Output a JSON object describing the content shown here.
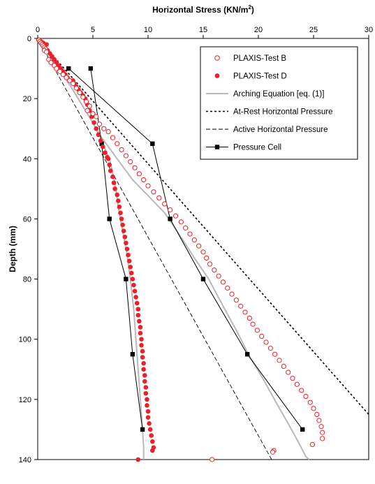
{
  "chart_data": {
    "type": "scatter",
    "title": "",
    "xlabel": "Horizontal Stress (KN/m",
    "xlabel_sup": "2",
    "xlabel_end": ")",
    "ylabel": "Depth (mm)",
    "xlim": [
      0,
      30
    ],
    "ylim": [
      0,
      140
    ],
    "y_inverted": true,
    "x_axis_position": "top",
    "x_ticks": [
      0,
      5,
      10,
      15,
      20,
      25,
      30
    ],
    "y_ticks": [
      0,
      20,
      40,
      60,
      80,
      100,
      120,
      140
    ],
    "grid": false,
    "legend_position": "top-right",
    "series": [
      {
        "name": "PLAXIS-Test B",
        "style": "open-circle",
        "color": "#e8212a",
        "points": [
          [
            0.1,
            0.5
          ],
          [
            0.2,
            1
          ],
          [
            0.3,
            1.5
          ],
          [
            0.4,
            2
          ],
          [
            0.5,
            2.5
          ],
          [
            0.6,
            3
          ],
          [
            0.7,
            3.5
          ],
          [
            0.6,
            4
          ],
          [
            0.8,
            4.5
          ],
          [
            1.0,
            7
          ],
          [
            1.2,
            8
          ],
          [
            1.5,
            9
          ],
          [
            1.7,
            10
          ],
          [
            2.0,
            11
          ],
          [
            2.3,
            12
          ],
          [
            2.6,
            13
          ],
          [
            2.9,
            14
          ],
          [
            3.2,
            15
          ],
          [
            3.5,
            16.5
          ],
          [
            3.8,
            18
          ],
          [
            4.1,
            19.5
          ],
          [
            4.4,
            21
          ],
          [
            4.7,
            22.5
          ],
          [
            4.5,
            24
          ],
          [
            5.0,
            25
          ],
          [
            5.3,
            26
          ],
          [
            5.6,
            28.5
          ],
          [
            6.0,
            30
          ],
          [
            6.4,
            31
          ],
          [
            6.8,
            33
          ],
          [
            7.2,
            35
          ],
          [
            7.6,
            37
          ],
          [
            8.0,
            39
          ],
          [
            8.4,
            41
          ],
          [
            8.8,
            43
          ],
          [
            9.2,
            45
          ],
          [
            9.6,
            47
          ],
          [
            10.0,
            49
          ],
          [
            10.5,
            51
          ],
          [
            11.0,
            53
          ],
          [
            11.5,
            55
          ],
          [
            12.0,
            57
          ],
          [
            12.5,
            59
          ],
          [
            13.0,
            61
          ],
          [
            13.4,
            63
          ],
          [
            13.8,
            65
          ],
          [
            14.2,
            67
          ],
          [
            14.6,
            69
          ],
          [
            15.0,
            71
          ],
          [
            15.3,
            73
          ],
          [
            15.6,
            75
          ],
          [
            16.0,
            77
          ],
          [
            16.4,
            79
          ],
          [
            16.8,
            81
          ],
          [
            17.2,
            83
          ],
          [
            17.6,
            85
          ],
          [
            18.0,
            87
          ],
          [
            18.4,
            89
          ],
          [
            18.8,
            91
          ],
          [
            19.2,
            93
          ],
          [
            19.5,
            95
          ],
          [
            19.9,
            97
          ],
          [
            20.3,
            99
          ],
          [
            20.7,
            101
          ],
          [
            21.1,
            103
          ],
          [
            21.5,
            105
          ],
          [
            21.9,
            107
          ],
          [
            22.3,
            109
          ],
          [
            22.7,
            111
          ],
          [
            23.1,
            113
          ],
          [
            23.5,
            115
          ],
          [
            23.9,
            117
          ],
          [
            24.3,
            119
          ],
          [
            24.7,
            121
          ],
          [
            25.0,
            123
          ],
          [
            25.3,
            125
          ],
          [
            25.5,
            127
          ],
          [
            25.7,
            129
          ],
          [
            25.8,
            131
          ],
          [
            25.8,
            133
          ],
          [
            24.9,
            135
          ],
          [
            21.4,
            137
          ],
          [
            21.3,
            137.5
          ],
          [
            15.8,
            140
          ]
        ]
      },
      {
        "name": "PLAXIS-Test D",
        "style": "filled-circle",
        "color": "#e8212a",
        "points": [
          [
            0.1,
            0.5
          ],
          [
            0.3,
            1
          ],
          [
            0.5,
            1.5
          ],
          [
            0.8,
            2
          ],
          [
            0.6,
            3
          ],
          [
            0.9,
            4
          ],
          [
            1.1,
            5
          ],
          [
            1.3,
            6
          ],
          [
            1.5,
            7
          ],
          [
            1.7,
            8
          ],
          [
            1.9,
            9
          ],
          [
            2.1,
            10
          ],
          [
            2.3,
            11
          ],
          [
            2.5,
            12
          ],
          [
            2.7,
            13
          ],
          [
            3.2,
            14
          ],
          [
            3.3,
            15
          ],
          [
            3.5,
            16
          ],
          [
            3.7,
            17
          ],
          [
            3.9,
            18
          ],
          [
            4.1,
            19
          ],
          [
            4.3,
            20
          ],
          [
            4.5,
            22
          ],
          [
            4.7,
            24
          ],
          [
            4.9,
            26
          ],
          [
            5.1,
            28
          ],
          [
            5.3,
            30
          ],
          [
            5.5,
            32
          ],
          [
            5.7,
            34
          ],
          [
            5.9,
            36
          ],
          [
            6.1,
            38
          ],
          [
            6.3,
            39.5
          ],
          [
            6.4,
            40
          ],
          [
            6.5,
            42
          ],
          [
            6.6,
            44
          ],
          [
            6.8,
            46
          ],
          [
            6.9,
            48
          ],
          [
            7.0,
            50
          ],
          [
            7.2,
            52
          ],
          [
            7.3,
            54
          ],
          [
            7.4,
            56
          ],
          [
            7.5,
            58
          ],
          [
            7.6,
            60
          ],
          [
            7.7,
            62
          ],
          [
            7.8,
            64
          ],
          [
            7.9,
            66
          ],
          [
            8.0,
            68
          ],
          [
            8.1,
            70
          ],
          [
            8.2,
            72
          ],
          [
            8.3,
            74
          ],
          [
            8.4,
            76
          ],
          [
            8.5,
            78
          ],
          [
            8.6,
            80
          ],
          [
            8.7,
            82
          ],
          [
            8.8,
            84
          ],
          [
            8.9,
            86
          ],
          [
            9.0,
            88
          ],
          [
            9.1,
            90
          ],
          [
            9.1,
            92
          ],
          [
            9.2,
            94
          ],
          [
            9.3,
            96
          ],
          [
            9.3,
            98
          ],
          [
            9.4,
            100
          ],
          [
            9.4,
            102
          ],
          [
            9.5,
            104
          ],
          [
            9.5,
            106
          ],
          [
            9.6,
            108
          ],
          [
            9.6,
            110
          ],
          [
            9.7,
            112
          ],
          [
            9.7,
            114
          ],
          [
            9.8,
            116
          ],
          [
            9.8,
            118
          ],
          [
            9.9,
            120
          ],
          [
            9.9,
            122
          ],
          [
            10.0,
            124
          ],
          [
            10.0,
            126
          ],
          [
            10.1,
            128
          ],
          [
            10.2,
            130
          ],
          [
            10.3,
            132
          ],
          [
            10.4,
            134
          ],
          [
            10.5,
            136
          ],
          [
            10.4,
            137
          ],
          [
            9.1,
            140
          ]
        ]
      },
      {
        "name": "Arching Equation [eq. (1)]",
        "style": "solid-line",
        "color": "#b8b8b8",
        "points": [
          [
            0,
            0
          ],
          [
            1.5,
            8
          ],
          [
            3,
            16
          ],
          [
            4.5,
            25
          ],
          [
            5.8,
            33
          ],
          [
            7.2,
            40
          ],
          [
            8.6,
            47
          ],
          [
            10.2,
            53
          ],
          [
            11.5,
            58
          ],
          [
            12.8,
            65
          ],
          [
            14.2,
            73
          ],
          [
            15.5,
            80
          ],
          [
            16.8,
            89
          ],
          [
            18.0,
            97
          ],
          [
            19.1,
            105
          ],
          [
            20.4,
            113
          ],
          [
            21.6,
            121
          ],
          [
            22.7,
            128
          ],
          [
            23.6,
            134
          ],
          [
            24.3,
            139
          ],
          [
            24.6,
            140
          ]
        ],
        "points_lower": [
          [
            0,
            0
          ],
          [
            1,
            5
          ],
          [
            2,
            10
          ],
          [
            3,
            16
          ],
          [
            4,
            22
          ],
          [
            5,
            28
          ],
          [
            5.8,
            34
          ],
          [
            6.5,
            40
          ],
          [
            7.0,
            48
          ],
          [
            7.3,
            56
          ],
          [
            7.7,
            64
          ],
          [
            8.1,
            72
          ],
          [
            8.4,
            80
          ],
          [
            8.7,
            90
          ],
          [
            8.9,
            100
          ],
          [
            9.1,
            110
          ],
          [
            9.3,
            120
          ],
          [
            9.5,
            130
          ],
          [
            9.6,
            136
          ],
          [
            9.6,
            140
          ]
        ]
      },
      {
        "name": "At-Rest Horizontal Pressure",
        "style": "dotted-line",
        "color": "#000000",
        "points": [
          [
            0,
            0
          ],
          [
            30,
            125
          ]
        ]
      },
      {
        "name": "Active Horizontal Pressure",
        "style": "dashed-line",
        "color": "#000000",
        "points": [
          [
            0,
            0
          ],
          [
            21.2,
            140
          ]
        ]
      },
      {
        "name": "Pressure Cell",
        "style": "line-square",
        "color": "#000000",
        "points": [
          [
            4.8,
            10
          ],
          [
            5.8,
            35
          ],
          [
            6.5,
            60
          ],
          [
            8.0,
            80
          ],
          [
            8.6,
            105
          ],
          [
            9.5,
            130
          ]
        ],
        "points_second": [
          [
            2.8,
            10
          ],
          [
            10.4,
            35
          ],
          [
            12.0,
            60
          ],
          [
            15.0,
            80
          ],
          [
            19.0,
            105
          ],
          [
            24.0,
            130
          ]
        ]
      }
    ]
  }
}
